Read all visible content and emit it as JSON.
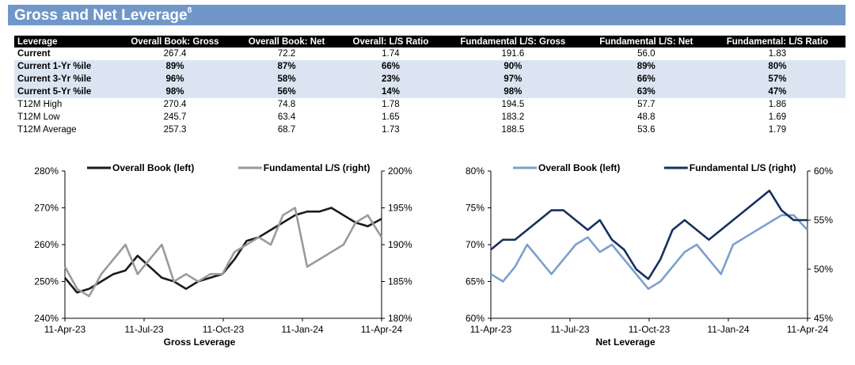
{
  "header": {
    "title": "Gross and Net Leverage",
    "footnote": "8"
  },
  "table": {
    "columns": [
      "Leverage",
      "Overall Book: Gross",
      "Overall Book: Net",
      "Overall: L/S Ratio",
      "Fundamental L/S: Gross",
      "Fundamental L/S: Net",
      "Fundamental: L/S Ratio"
    ],
    "rows": [
      {
        "cells": [
          "Current",
          "267.4",
          "72.2",
          "1.74",
          "191.6",
          "56.0",
          "1.83"
        ],
        "style": "bold-label"
      },
      {
        "cells": [
          "Current 1-Yr %ile",
          "89%",
          "87%",
          "66%",
          "90%",
          "89%",
          "80%"
        ],
        "style": "shade"
      },
      {
        "cells": [
          "Current 3-Yr %ile",
          "96%",
          "58%",
          "23%",
          "97%",
          "66%",
          "57%"
        ],
        "style": "shade"
      },
      {
        "cells": [
          "Current 5-Yr %ile",
          "98%",
          "56%",
          "14%",
          "98%",
          "63%",
          "47%"
        ],
        "style": "shade"
      },
      {
        "cells": [
          "T12M High",
          "270.4",
          "74.8",
          "1.78",
          "194.5",
          "57.7",
          "1.86"
        ],
        "style": "plain"
      },
      {
        "cells": [
          "T12M Low",
          "245.7",
          "63.4",
          "1.65",
          "183.2",
          "48.8",
          "1.69"
        ],
        "style": "plain"
      },
      {
        "cells": [
          "T12M Average",
          "257.3",
          "68.7",
          "1.73",
          "188.5",
          "53.6",
          "1.79"
        ],
        "style": "plain"
      }
    ]
  },
  "chart_data": [
    {
      "type": "line",
      "title": "",
      "xlabel": "Gross Leverage",
      "ylabel_left": "",
      "ylabel_right": "",
      "x_ticks": [
        "11-Apr-23",
        "11-Jul-23",
        "11-Oct-23",
        "11-Jan-24",
        "11-Apr-24"
      ],
      "y_left": {
        "lim": [
          240,
          280
        ],
        "ticks": [
          "240%",
          "250%",
          "260%",
          "270%",
          "280%"
        ]
      },
      "y_right": {
        "lim": [
          180,
          200
        ],
        "ticks": [
          "180%",
          "185%",
          "190%",
          "195%",
          "200%"
        ]
      },
      "legend": "top",
      "series": [
        {
          "name": "Overall Book (left)",
          "axis": "left",
          "color": "#1a1a1a",
          "x": [
            "2023-04-11",
            "2023-04-25",
            "2023-05-09",
            "2023-05-23",
            "2023-06-06",
            "2023-06-20",
            "2023-07-04",
            "2023-07-18",
            "2023-08-01",
            "2023-08-15",
            "2023-08-29",
            "2023-09-12",
            "2023-09-26",
            "2023-10-10",
            "2023-10-24",
            "2023-11-07",
            "2023-11-21",
            "2023-12-05",
            "2023-12-19",
            "2024-01-02",
            "2024-01-16",
            "2024-01-30",
            "2024-02-13",
            "2024-02-27",
            "2024-03-12",
            "2024-03-26",
            "2024-04-11"
          ],
          "values": [
            251,
            247,
            248,
            250,
            252,
            253,
            257,
            254,
            251,
            250,
            248,
            250,
            251,
            252,
            256,
            261,
            262,
            264,
            266,
            268,
            269,
            269,
            270,
            268,
            266,
            265,
            267
          ]
        },
        {
          "name": "Fundamental L/S (right)",
          "axis": "right",
          "color": "#9a9a9a",
          "x": [
            "2023-04-11",
            "2023-04-25",
            "2023-05-09",
            "2023-05-23",
            "2023-06-06",
            "2023-06-20",
            "2023-07-04",
            "2023-07-18",
            "2023-08-01",
            "2023-08-15",
            "2023-08-29",
            "2023-09-12",
            "2023-09-26",
            "2023-10-10",
            "2023-10-24",
            "2023-11-07",
            "2023-11-21",
            "2023-12-05",
            "2023-12-19",
            "2024-01-02",
            "2024-01-16",
            "2024-01-30",
            "2024-02-13",
            "2024-02-27",
            "2024-03-12",
            "2024-03-26",
            "2024-04-11"
          ],
          "values": [
            187,
            184,
            183,
            186,
            188,
            190,
            186,
            188,
            190,
            185,
            186,
            185,
            186,
            186,
            189,
            190,
            191,
            190,
            194,
            195,
            187,
            188,
            189,
            190,
            193,
            194,
            191
          ]
        }
      ]
    },
    {
      "type": "line",
      "title": "",
      "xlabel": "Net Leverage",
      "ylabel_left": "",
      "ylabel_right": "",
      "x_ticks": [
        "11-Apr-23",
        "11-Jul-23",
        "11-Oct-23",
        "11-Jan-24",
        "11-Apr-24"
      ],
      "y_left": {
        "lim": [
          60,
          80
        ],
        "ticks": [
          "60%",
          "65%",
          "70%",
          "75%",
          "80%"
        ]
      },
      "y_right": {
        "lim": [
          45,
          60
        ],
        "ticks": [
          "45%",
          "50%",
          "55%",
          "60%"
        ]
      },
      "legend": "top",
      "series": [
        {
          "name": "Overall Book (left)",
          "axis": "left",
          "color": "#7aa0cf",
          "x": [
            "2023-04-11",
            "2023-04-25",
            "2023-05-09",
            "2023-05-23",
            "2023-06-06",
            "2023-06-20",
            "2023-07-04",
            "2023-07-18",
            "2023-08-01",
            "2023-08-15",
            "2023-08-29",
            "2023-09-12",
            "2023-09-26",
            "2023-10-10",
            "2023-10-24",
            "2023-11-07",
            "2023-11-21",
            "2023-12-05",
            "2023-12-19",
            "2024-01-02",
            "2024-01-16",
            "2024-01-30",
            "2024-02-13",
            "2024-02-27",
            "2024-03-12",
            "2024-03-26",
            "2024-04-11"
          ],
          "values": [
            66,
            65,
            67,
            70,
            68,
            66,
            68,
            70,
            71,
            69,
            70,
            68,
            66,
            64,
            65,
            67,
            69,
            70,
            68,
            66,
            70,
            71,
            72,
            73,
            74,
            74,
            72
          ]
        },
        {
          "name": "Fundamental L/S (right)",
          "axis": "right",
          "color": "#16305e",
          "x": [
            "2023-04-11",
            "2023-04-25",
            "2023-05-09",
            "2023-05-23",
            "2023-06-06",
            "2023-06-20",
            "2023-07-04",
            "2023-07-18",
            "2023-08-01",
            "2023-08-15",
            "2023-08-29",
            "2023-09-12",
            "2023-09-26",
            "2023-10-10",
            "2023-10-24",
            "2023-11-07",
            "2023-11-21",
            "2023-12-05",
            "2023-12-19",
            "2024-01-02",
            "2024-01-16",
            "2024-01-30",
            "2024-02-13",
            "2024-02-27",
            "2024-03-12",
            "2024-03-26",
            "2024-04-11"
          ],
          "values": [
            52,
            53,
            53,
            54,
            55,
            56,
            56,
            55,
            54,
            55,
            53,
            52,
            50,
            49,
            51,
            54,
            55,
            54,
            53,
            54,
            55,
            56,
            57,
            58,
            56,
            55,
            55
          ]
        }
      ]
    }
  ]
}
